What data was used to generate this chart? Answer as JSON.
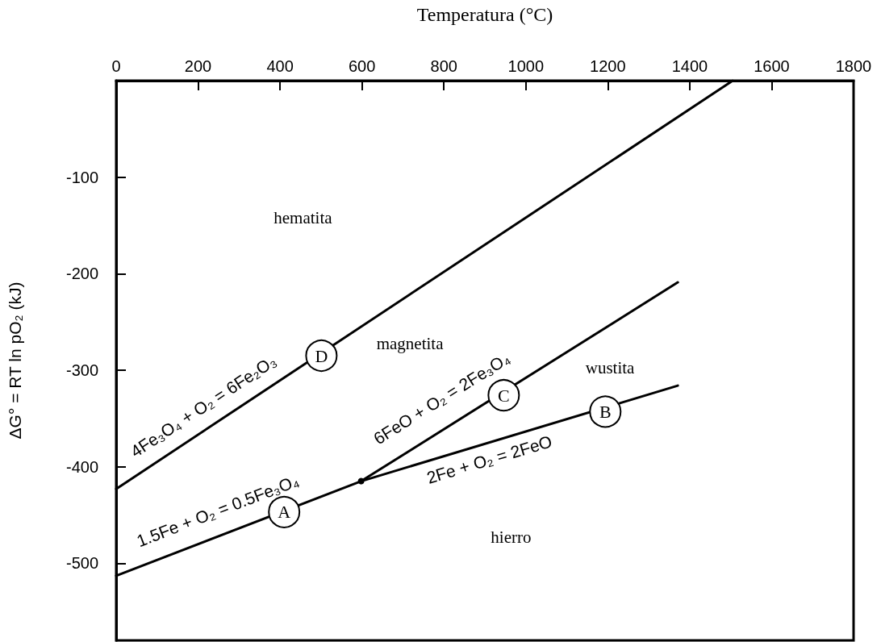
{
  "chart_data": {
    "type": "line",
    "xlabel": "Temperatura (°C)",
    "ylabel": "ΔG° = RT ln pO₂ (kJ)",
    "xlim": [
      0,
      1800
    ],
    "xticks": [
      0,
      200,
      400,
      600,
      800,
      1000,
      1200,
      1400,
      1600,
      1800
    ],
    "ylim": [
      -580,
      0
    ],
    "yticks": [
      -100,
      -200,
      -300,
      -400,
      -500
    ],
    "grid": false,
    "marker": "none",
    "series": [
      {
        "name": "4Fe₃O₄ + O₂ = 6Fe₂O₃",
        "color": "#000000",
        "x": [
          0,
          1505
        ],
        "values": [
          -423,
          0
        ]
      },
      {
        "name": "1.5Fe + O₂ = 0.5Fe₃O₄",
        "color": "#000000",
        "x": [
          0,
          598
        ],
        "values": [
          -513,
          -415
        ]
      },
      {
        "name": "6FeO + O₂ = 2Fe₃O₄",
        "color": "#000000",
        "x": [
          598,
          1371
        ],
        "values": [
          -415,
          -209
        ]
      },
      {
        "name": "2Fe + O₂ = 2FeO",
        "color": "#000000",
        "x": [
          598,
          1371
        ],
        "values": [
          -415,
          -316
        ]
      },
      {
        "type": "scatter",
        "marker": "circle",
        "color": "#000000",
        "x": [
          501,
          410,
          946,
          1194
        ],
        "values": [
          -285,
          -447,
          -326,
          -343
        ],
        "value_labels": [
          "D",
          "A",
          "C",
          "B"
        ]
      },
      {
        "type": "scatter",
        "marker": "circle",
        "color": "#000000",
        "x": [
          598
        ],
        "values": [
          -415
        ]
      }
    ],
    "annotations": [
      "hematita",
      "magnetita",
      "wustita",
      "hierro"
    ]
  }
}
